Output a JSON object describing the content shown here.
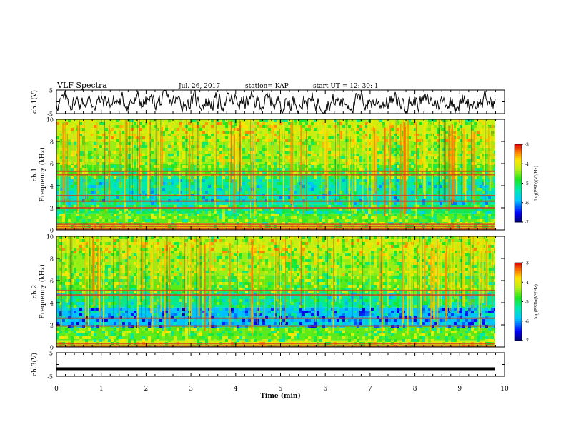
{
  "header": {
    "title": "VLF Spectra",
    "date": "Jul. 26, 2017",
    "station": "station= KAP",
    "start": "start  UT =   12: 30: 1"
  },
  "chart_data": [
    {
      "type": "line",
      "name": "ch1-waveform",
      "ylabel": "ch.1(V)",
      "ylim": [
        -5,
        5
      ],
      "yticks": [
        "5",
        "-5"
      ],
      "xlim": [
        0,
        10
      ]
    },
    {
      "type": "heatmap",
      "name": "ch1-spectrogram",
      "ylabel_top": "ch.1",
      "ylabel": "Frequency (kHz)",
      "ylim": [
        0,
        10
      ],
      "yticks": [
        "0",
        "2",
        "4",
        "6",
        "8",
        "10"
      ],
      "xlim": [
        0,
        10
      ],
      "colorbar": {
        "label": "log(PSD)(V²/Hz)",
        "range": [
          -7,
          -3
        ],
        "ticks": [
          "-3",
          "-4",
          "-5",
          "-6",
          "-7"
        ]
      },
      "emission_lines_khz": [
        0.1,
        0.3,
        0.5,
        2.0,
        2.6,
        3.1,
        5.0,
        5.3
      ]
    },
    {
      "type": "heatmap",
      "name": "ch2-spectrogram",
      "ylabel_top": "ch.2",
      "ylabel": "Frequency (kHz)",
      "ylim": [
        0,
        10
      ],
      "yticks": [
        "0",
        "2",
        "4",
        "6",
        "8",
        "10"
      ],
      "xlim": [
        0,
        10
      ],
      "colorbar": {
        "label": "log(PSD)(V²/Hz)",
        "range": [
          -7,
          -3
        ],
        "ticks": [
          "-3",
          "-4",
          "-5",
          "-6",
          "-7"
        ]
      },
      "emission_lines_khz": [
        0.1,
        0.3,
        1.9,
        2.6,
        4.7,
        5.1
      ]
    },
    {
      "type": "line",
      "name": "ch3-waveform",
      "ylabel": "ch.3(V)",
      "ylim": [
        -5,
        5
      ],
      "yticks": [
        "5",
        "-5"
      ],
      "level": [
        -1.8
      ],
      "xlim": [
        0,
        10
      ],
      "xlabel": "Time (min)",
      "xticks": [
        "0",
        "1",
        "2",
        "3",
        "4",
        "5",
        "6",
        "7",
        "8",
        "9",
        "10"
      ]
    }
  ]
}
